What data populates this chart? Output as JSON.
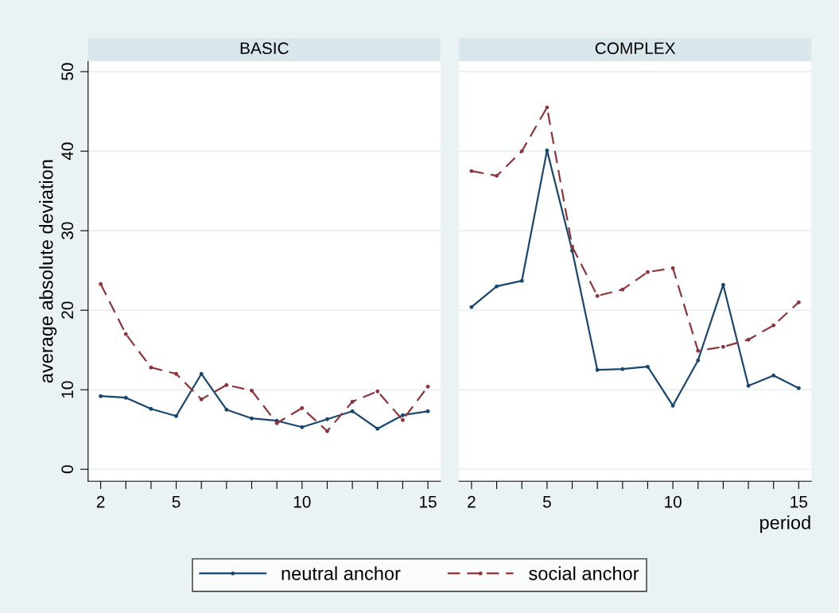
{
  "chart_data": [
    {
      "type": "line",
      "title": "BASIC",
      "ylabel": "average absolute deviation",
      "x": [
        2,
        3,
        4,
        5,
        6,
        7,
        8,
        9,
        10,
        11,
        12,
        13,
        14,
        15
      ],
      "series": [
        {
          "name": "neutral anchor",
          "color": "#1a476f",
          "line_style": "solid",
          "values": [
            9.2,
            9.0,
            7.6,
            6.7,
            12.0,
            7.5,
            6.4,
            6.1,
            5.3,
            6.3,
            7.3,
            5.1,
            6.8,
            7.3
          ]
        },
        {
          "name": "social anchor",
          "color": "#90353b",
          "line_style": "dashed",
          "values": [
            23.3,
            17.0,
            12.8,
            12.0,
            8.8,
            10.6,
            9.9,
            5.8,
            7.7,
            4.8,
            8.5,
            9.8,
            6.2,
            10.4
          ]
        }
      ],
      "xlim": [
        1.5,
        15.5
      ],
      "ylim": [
        -1.5,
        51.3
      ],
      "xticks": [
        2,
        {
          "value": 3,
          "label": null
        },
        {
          "value": 4,
          "label": null
        },
        5,
        {
          "value": 6,
          "label": null
        },
        {
          "value": 7,
          "label": null
        },
        {
          "value": 8,
          "label": null
        },
        {
          "value": 9,
          "label": null
        },
        10,
        {
          "value": 11,
          "label": null
        },
        {
          "value": 12,
          "label": null
        },
        {
          "value": 13,
          "label": null
        },
        {
          "value": 14,
          "label": null
        },
        15
      ],
      "yticks": [
        0,
        10,
        20,
        30,
        40,
        50
      ],
      "grid": "y",
      "marker": "circle",
      "legend": "bottom"
    },
    {
      "type": "line",
      "title": "COMPLEX",
      "xlabel": "period",
      "x": [
        2,
        3,
        4,
        5,
        6,
        7,
        8,
        9,
        10,
        11,
        12,
        13,
        14,
        15
      ],
      "series": [
        {
          "name": "neutral anchor",
          "color": "#1a476f",
          "line_style": "solid",
          "values": [
            20.4,
            23.0,
            23.7,
            40.1,
            27.5,
            12.5,
            12.6,
            12.9,
            8.0,
            13.7,
            23.2,
            10.5,
            11.8,
            10.2
          ]
        },
        {
          "name": "social anchor",
          "color": "#90353b",
          "line_style": "dashed",
          "values": [
            37.5,
            36.9,
            40.0,
            45.5,
            28.0,
            21.8,
            22.6,
            24.8,
            25.3,
            14.9,
            15.4,
            16.3,
            18.1,
            21.0
          ]
        }
      ],
      "xlim": [
        1.5,
        15.5
      ],
      "ylim": [
        -1.5,
        51.3
      ],
      "xticks": [
        2,
        {
          "value": 3,
          "label": null
        },
        {
          "value": 4,
          "label": null
        },
        5,
        {
          "value": 6,
          "label": null
        },
        {
          "value": 7,
          "label": null
        },
        {
          "value": 8,
          "label": null
        },
        {
          "value": 9,
          "label": null
        },
        10,
        {
          "value": 11,
          "label": null
        },
        {
          "value": 12,
          "label": null
        },
        {
          "value": 13,
          "label": null
        },
        {
          "value": 14,
          "label": null
        },
        15
      ],
      "yticks": [
        0,
        10,
        20,
        30,
        40,
        50
      ],
      "tick_labels": "x",
      "grid": "y",
      "marker": "circle",
      "legend": "bottom"
    }
  ]
}
